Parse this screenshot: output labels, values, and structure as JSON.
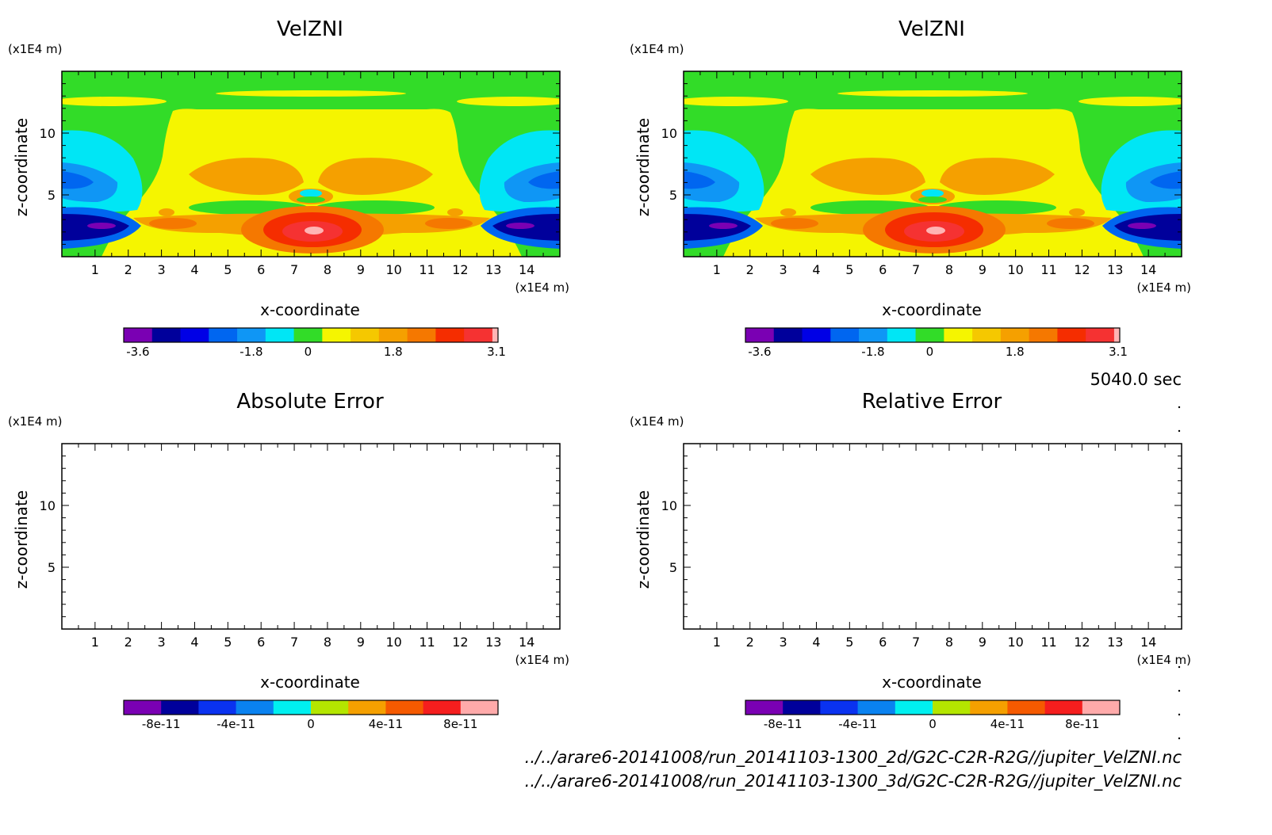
{
  "time_label": "5040.0 sec",
  "source_files": [
    "../../arare6-20141008/run_20141103-1300_2d/G2C-C2R-R2G//jupiter_VelZNI.nc",
    "../../arare6-20141008/run_20141103-1300_3d/G2C-C2R-R2G//jupiter_VelZNI.nc"
  ],
  "chart_data": [
    {
      "id": "velzni_2d",
      "type": "heatmap",
      "title": "VelZNI",
      "xlabel": "x-coordinate",
      "ylabel": "z-coordinate",
      "x_unit": "(x1E4 m)",
      "y_unit": "(x1E4 m)",
      "xlim": [
        0,
        15
      ],
      "ylim": [
        0,
        15
      ],
      "x_ticks": [
        "1",
        "2",
        "3",
        "4",
        "5",
        "6",
        "7",
        "8",
        "9",
        "10",
        "11",
        "12",
        "13",
        "14"
      ],
      "y_ticks": [
        "5",
        "10"
      ],
      "field": "filled",
      "colorbar": {
        "colors": [
          "#7a00b3",
          "#00009b",
          "#0000e6",
          "#0066f0",
          "#0f96f5",
          "#00e6f5",
          "#32dc28",
          "#f5f500",
          "#f5c800",
          "#f5a000",
          "#f57800",
          "#f52d00",
          "#f53232",
          "#ffb4b4"
        ],
        "tick_labels": [
          "-3.6",
          "-1.8",
          "0",
          "1.8",
          "3.1"
        ]
      }
    },
    {
      "id": "velzni_3d",
      "type": "heatmap",
      "title": "VelZNI",
      "xlabel": "x-coordinate",
      "ylabel": "z-coordinate",
      "x_unit": "(x1E4 m)",
      "y_unit": "(x1E4 m)",
      "xlim": [
        0,
        15
      ],
      "ylim": [
        0,
        15
      ],
      "x_ticks": [
        "1",
        "2",
        "3",
        "4",
        "5",
        "6",
        "7",
        "8",
        "9",
        "10",
        "11",
        "12",
        "13",
        "14"
      ],
      "y_ticks": [
        "5",
        "10"
      ],
      "field": "filled",
      "colorbar": {
        "colors": [
          "#7a00b3",
          "#00009b",
          "#0000e6",
          "#0066f0",
          "#0f96f5",
          "#00e6f5",
          "#32dc28",
          "#f5f500",
          "#f5c800",
          "#f5a000",
          "#f57800",
          "#f52d00",
          "#f53232",
          "#ffb4b4"
        ],
        "tick_labels": [
          "-3.6",
          "-1.8",
          "0",
          "1.8",
          "3.1"
        ]
      }
    },
    {
      "id": "absolute_error",
      "type": "heatmap",
      "title": "Absolute Error",
      "xlabel": "x-coordinate",
      "ylabel": "z-coordinate",
      "x_unit": "(x1E4 m)",
      "y_unit": "(x1E4 m)",
      "xlim": [
        0,
        15
      ],
      "ylim": [
        0,
        15
      ],
      "x_ticks": [
        "1",
        "2",
        "3",
        "4",
        "5",
        "6",
        "7",
        "8",
        "9",
        "10",
        "11",
        "12",
        "13",
        "14"
      ],
      "y_ticks": [
        "5",
        "10"
      ],
      "field": "empty",
      "colorbar": {
        "colors": [
          "#7a00b3",
          "#00009b",
          "#0a32f0",
          "#0a82f0",
          "#00f0f0",
          "#b4e600",
          "#f5a000",
          "#f55a00",
          "#f51e1e",
          "#ffaaaa"
        ],
        "tick_labels": [
          "-8e-11",
          "-4e-11",
          "0",
          "4e-11",
          "8e-11"
        ]
      }
    },
    {
      "id": "relative_error",
      "type": "heatmap",
      "title": "Relative Error",
      "xlabel": "x-coordinate",
      "ylabel": "z-coordinate",
      "x_unit": "(x1E4 m)",
      "y_unit": "(x1E4 m)",
      "xlim": [
        0,
        15
      ],
      "ylim": [
        0,
        15
      ],
      "x_ticks": [
        "1",
        "2",
        "3",
        "4",
        "5",
        "6",
        "7",
        "8",
        "9",
        "10",
        "11",
        "12",
        "13",
        "14"
      ],
      "y_ticks": [
        "5",
        "10"
      ],
      "field": "empty",
      "colorbar": {
        "colors": [
          "#7a00b3",
          "#00009b",
          "#0a32f0",
          "#0a82f0",
          "#00f0f0",
          "#b4e600",
          "#f5a000",
          "#f55a00",
          "#f51e1e",
          "#ffaaaa"
        ],
        "tick_labels": [
          "-8e-11",
          "-4e-11",
          "0",
          "4e-11",
          "8e-11"
        ]
      }
    }
  ]
}
